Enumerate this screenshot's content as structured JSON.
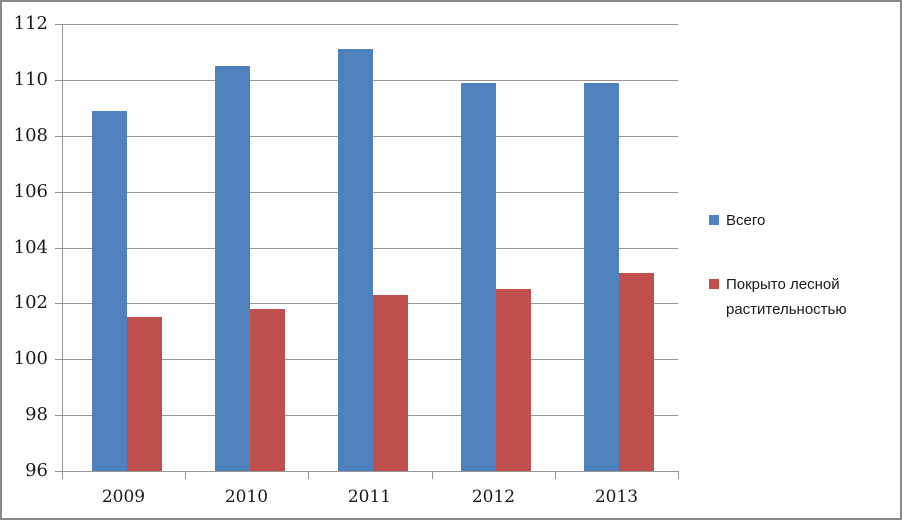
{
  "chart_data": {
    "type": "bar",
    "title": "",
    "xlabel": "",
    "ylabel": "",
    "categories": [
      "2009",
      "2010",
      "2011",
      "2012",
      "2013"
    ],
    "series": [
      {
        "name": "Всего",
        "color": "#4F81BD",
        "values": [
          108.9,
          110.5,
          111.1,
          109.9,
          109.9
        ]
      },
      {
        "name": "Покрыто лесной растительностью",
        "color": "#C0504D",
        "values": [
          101.5,
          101.8,
          102.3,
          102.5,
          103.1
        ]
      }
    ],
    "ylim": [
      96,
      112
    ],
    "ytick_step": 2,
    "ytick_labels": [
      "96",
      "98",
      "100",
      "102",
      "104",
      "106",
      "108",
      "110",
      "112"
    ],
    "grid": true,
    "legend_position": "right",
    "gridline_color": "#969696",
    "axis_color": "#969696",
    "border_color": "#8a8a8a",
    "text_color": "#1a1a1a"
  }
}
